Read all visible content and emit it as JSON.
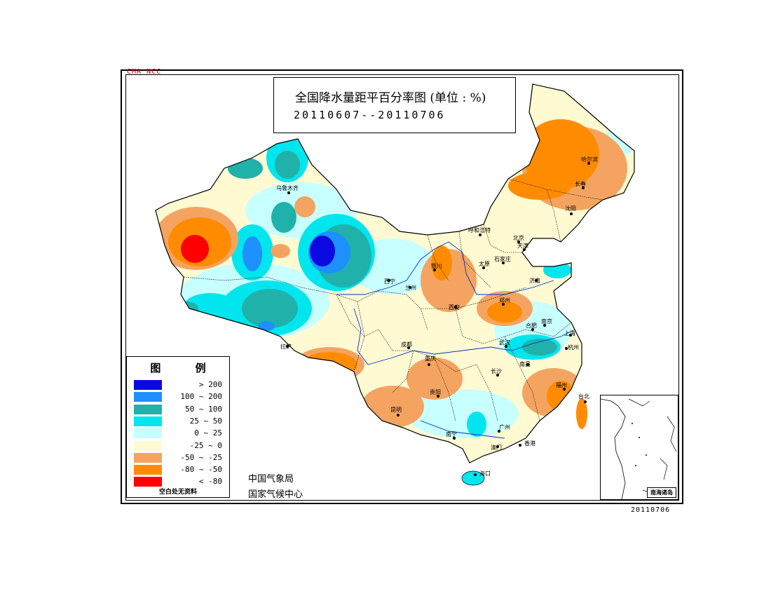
{
  "credit_top": "CMA NCC",
  "title": {
    "main": "全国降水量距平百分率图 (单位 : %)",
    "dates": "20110607--20110706"
  },
  "legend": {
    "title": "图 例",
    "items": [
      {
        "label": "> 200",
        "color": "#0a0ae0"
      },
      {
        "label": "100 ~ 200",
        "color": "#1e90ff"
      },
      {
        "label": "50 ~ 100",
        "color": "#20b2aa"
      },
      {
        "label": "25 ~ 50",
        "color": "#00e5ee"
      },
      {
        "label": "0 ~ 25",
        "color": "#c8ffff"
      },
      {
        "label": "-25 ~ 0",
        "color": "#fffad2"
      },
      {
        "label": "-50 ~ -25",
        "color": "#f4a460"
      },
      {
        "label": "-80 ~ -50",
        "color": "#ff8c00"
      },
      {
        "label": "< -80",
        "color": "#ff0000"
      }
    ],
    "note": "空白处无资料"
  },
  "agency": {
    "line1": "中国气象局",
    "line2": "国家气候中心"
  },
  "inset_label": "南海诸岛",
  "credit_bottom": "20110706",
  "cities": [
    {
      "name": "乌鲁木齐"
    },
    {
      "name": "哈尔滨"
    },
    {
      "name": "长春"
    },
    {
      "name": "沈阳"
    },
    {
      "name": "呼和浩特"
    },
    {
      "name": "北京"
    },
    {
      "name": "天津"
    },
    {
      "name": "银川"
    },
    {
      "name": "太原"
    },
    {
      "name": "石家庄"
    },
    {
      "name": "济南"
    },
    {
      "name": "西宁"
    },
    {
      "name": "兰州"
    },
    {
      "name": "西安"
    },
    {
      "name": "郑州"
    },
    {
      "name": "合肥"
    },
    {
      "name": "南京"
    },
    {
      "name": "上海"
    },
    {
      "name": "拉萨"
    },
    {
      "name": "成都"
    },
    {
      "name": "武汉"
    },
    {
      "name": "杭州"
    },
    {
      "name": "重庆"
    },
    {
      "name": "长沙"
    },
    {
      "name": "南昌"
    },
    {
      "name": "福州"
    },
    {
      "name": "贵阳"
    },
    {
      "name": "昆明"
    },
    {
      "name": "台北"
    },
    {
      "name": "南宁"
    },
    {
      "name": "广州"
    },
    {
      "name": "香港"
    },
    {
      "name": "澳门"
    },
    {
      "name": "海口"
    }
  ]
}
